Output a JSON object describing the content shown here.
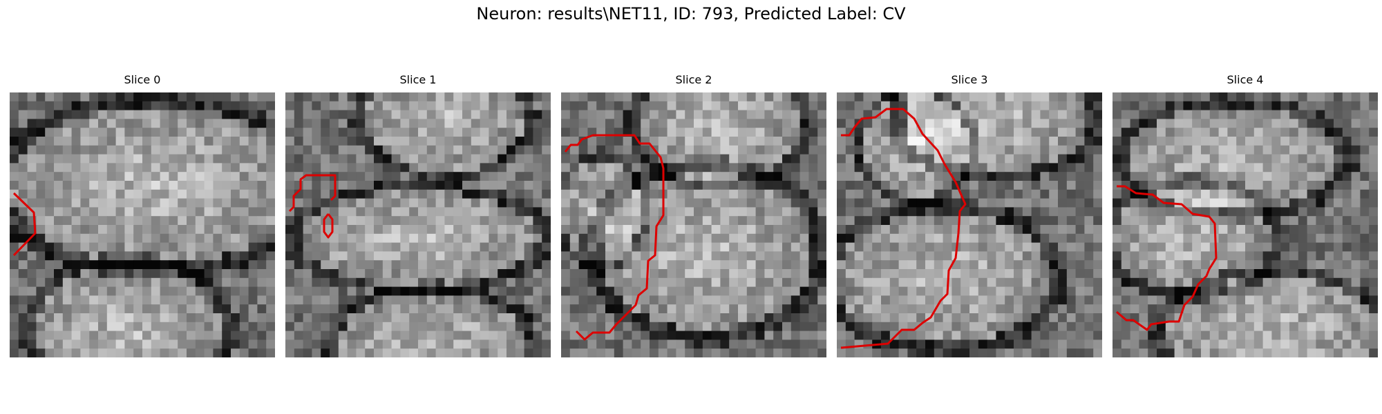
{
  "title": "Neuron: results\\NET11, ID: 793, Predicted Label: CV",
  "contour_color": "#dd0000",
  "image": {
    "grid_cells": 30,
    "colormap": "grayscale"
  },
  "panels": [
    {
      "label": "Slice 0"
    },
    {
      "label": "Slice 1"
    },
    {
      "label": "Slice 2"
    },
    {
      "label": "Slice 3"
    },
    {
      "label": "Slice 4"
    }
  ]
}
